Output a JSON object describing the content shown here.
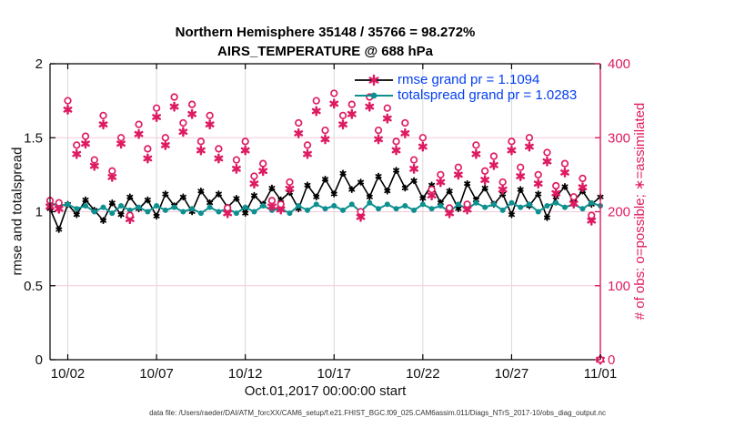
{
  "title": {
    "line1": "Northern Hemisphere 35148 / 35766 = 98.272%",
    "line2": "AIRS_TEMPERATURE @ 688 hPa"
  },
  "legend": [
    {
      "label": "rmse grand pr = 1.1094",
      "series": "rmse"
    },
    {
      "label": "totalspread grand pr = 1.0283",
      "series": "totalspread"
    }
  ],
  "axes": {
    "left": {
      "label": "rmse and totalspread",
      "range": [
        0,
        2
      ],
      "ticks": [
        0,
        0.5,
        1,
        1.5,
        2
      ],
      "tick_labels": [
        "0",
        "0.5",
        "1",
        "1.5",
        "2"
      ]
    },
    "right": {
      "label": "# of obs: o=possible; ∗=assimilated",
      "range": [
        0,
        400
      ],
      "ticks": [
        0,
        100,
        200,
        300,
        400
      ],
      "tick_labels": [
        "0",
        "100",
        "200",
        "300",
        "400"
      ]
    },
    "x": {
      "label": "Oct.01,2017 00:00:00 start",
      "range_days": [
        0,
        31
      ],
      "tick_days": [
        1,
        6,
        11,
        16,
        21,
        26,
        31
      ],
      "tick_labels": [
        "10/02",
        "10/07",
        "10/12",
        "10/17",
        "10/22",
        "10/27",
        "11/01"
      ]
    }
  },
  "footer": {
    "data_file": "data file: /Users/raeder/DAI/ATM_forcXX/CAM6_setup/f.e21.FHIST_BGC.f09_025.CAM6assim.011/Diags_NTrS_2017-10/obs_diag_output.nc"
  },
  "colors": {
    "obs_pink": "#DE1B62",
    "grid_pink": "#F7C9DA",
    "grid_gray": "#D9D9D9",
    "rmse_black": "#000000",
    "spread_teal": "#0E9090",
    "legend_text_blue": "#0540F2",
    "axis_black": "#000000"
  },
  "chart_data": {
    "type": "line",
    "title": "Northern Hemisphere 35148 / 35766 = 98.272% | AIRS_TEMPERATURE @ 688 hPa",
    "xlabel": "Oct.01,2017 00:00:00 start",
    "ylabel_left": "rmse and totalspread",
    "ylabel_right": "# of obs: o=possible; ∗=assimilated",
    "ylim_left": [
      0,
      2
    ],
    "ylim_right": [
      0,
      400
    ],
    "grid": true,
    "legend_position": "top-center-inside",
    "x_start_day": 0,
    "x_step_days": 0.5,
    "n_points": 63,
    "series": [
      {
        "name": "rmse",
        "axis": "left",
        "style": "line",
        "marker": "star",
        "color": "#000000",
        "values": [
          1.02,
          0.88,
          1.05,
          0.98,
          1.08,
          1.01,
          0.94,
          1.06,
          0.98,
          1.1,
          1.02,
          1.08,
          0.97,
          1.12,
          1.04,
          1.1,
          1.0,
          1.14,
          1.06,
          1.12,
          1.03,
          1.09,
          0.99,
          1.11,
          1.05,
          1.16,
          1.08,
          1.13,
          1.02,
          1.18,
          1.1,
          1.22,
          1.12,
          1.26,
          1.15,
          1.2,
          1.1,
          1.24,
          1.14,
          1.28,
          1.16,
          1.21,
          1.09,
          1.18,
          1.06,
          1.14,
          1.02,
          1.19,
          1.08,
          1.16,
          1.05,
          1.12,
          0.98,
          1.15,
          1.04,
          1.12,
          0.96,
          1.1,
          1.17,
          1.07,
          1.14,
          1.05,
          1.1
        ]
      },
      {
        "name": "totalspread",
        "axis": "left",
        "style": "line",
        "marker": "circle",
        "color": "#0E9090",
        "values": [
          1.06,
          1.04,
          1.05,
          1.02,
          1.04,
          1.0,
          1.03,
          0.99,
          1.04,
          1.01,
          1.03,
          1.0,
          1.04,
          1.01,
          1.03,
          1.0,
          1.02,
          0.99,
          1.03,
          1.0,
          1.02,
          0.99,
          1.03,
          1.0,
          1.04,
          1.01,
          1.02,
          0.99,
          1.04,
          1.01,
          1.05,
          1.02,
          1.04,
          1.01,
          1.05,
          1.0,
          1.06,
          1.02,
          1.05,
          1.02,
          1.04,
          1.01,
          1.05,
          1.02,
          1.04,
          1.0,
          1.05,
          1.02,
          1.06,
          1.03,
          1.05,
          1.01,
          1.06,
          1.03,
          1.05,
          1.0,
          1.04,
          1.06,
          1.03,
          1.05,
          1.02,
          1.06,
          1.04
        ]
      },
      {
        "name": "obs_possible",
        "axis": "right",
        "style": "scatter",
        "marker": "open-circle",
        "color": "#DE1B62",
        "values": [
          215,
          212,
          350,
          290,
          302,
          270,
          330,
          255,
          300,
          195,
          318,
          285,
          340,
          300,
          355,
          320,
          345,
          295,
          330,
          285,
          205,
          270,
          295,
          248,
          265,
          215,
          210,
          240,
          320,
          290,
          350,
          310,
          360,
          330,
          345,
          200,
          355,
          310,
          340,
          295,
          320,
          270,
          300,
          230,
          250,
          205,
          260,
          210,
          290,
          255,
          275,
          240,
          295,
          260,
          300,
          250,
          280,
          235,
          265,
          220,
          245,
          195,
          0
        ]
      },
      {
        "name": "obs_assimilated",
        "axis": "right",
        "style": "scatter",
        "marker": "star",
        "color": "#DE1B62",
        "values": [
          207,
          204,
          338,
          278,
          292,
          262,
          318,
          247,
          292,
          190,
          305,
          272,
          328,
          290,
          342,
          308,
          332,
          283,
          318,
          272,
          198,
          258,
          283,
          238,
          255,
          207,
          203,
          231,
          306,
          278,
          336,
          298,
          346,
          318,
          332,
          193,
          342,
          298,
          326,
          283,
          306,
          258,
          288,
          222,
          240,
          198,
          250,
          203,
          278,
          243,
          263,
          230,
          283,
          248,
          288,
          238,
          268,
          225,
          253,
          211,
          233,
          188,
          0
        ]
      }
    ]
  }
}
